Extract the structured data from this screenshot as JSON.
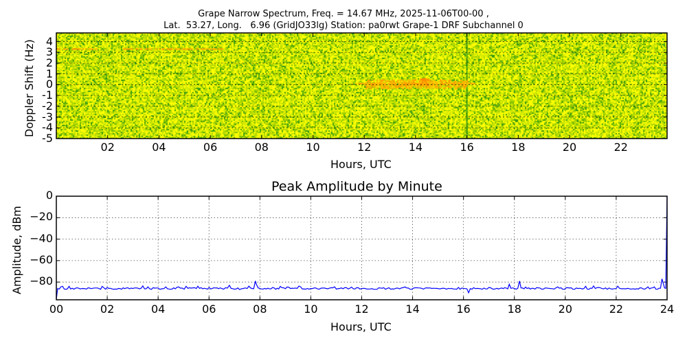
{
  "figure": {
    "title_line1": "Grape Narrow Spectrum, Freq. = 14.67 MHz, 2025-11-06T00-00 ,",
    "title_line2": "Lat.  53.27, Long.   6.96 (GridJO33lg) Station: pa0rwt Grape-1 DRF Subchannel 0"
  },
  "spectrogram": {
    "ylabel": "Doppler Shift (Hz)",
    "xlabel": "Hours, UTC",
    "yticks": [
      "4",
      "3",
      "2",
      "1",
      "0",
      "-1",
      "-2",
      "-3",
      "-4",
      "-5"
    ],
    "xticks": [
      "02",
      "04",
      "06",
      "08",
      "10",
      "12",
      "14",
      "16",
      "18",
      "20",
      "22"
    ]
  },
  "amplitude": {
    "title": "Peak Amplitude by Minute",
    "ylabel": "Amplitude, dBm",
    "xlabel": "Hours, UTC",
    "yticks": [
      "0",
      "−20",
      "−40",
      "−60",
      "−80"
    ],
    "xticks": [
      "00",
      "02",
      "04",
      "06",
      "08",
      "10",
      "12",
      "14",
      "16",
      "18",
      "20",
      "22",
      "24"
    ]
  },
  "colors": {
    "line": "#0000ff",
    "spectro_base": "#c8e000",
    "spectro_yellow": "#ffff00",
    "spectro_green": "#2a9a10",
    "spectro_orange": "#ff8c00"
  },
  "chart_data": [
    {
      "type": "heatmap",
      "title": "Grape Narrow Spectrum, Freq. = 14.67 MHz, 2025-11-06T00-00 , Lat.  53.27, Long.   6.96 (GridJO33lg) Station: pa0rwt Grape-1 DRF Subchannel 0",
      "xlabel": "Hours, UTC",
      "ylabel": "Doppler Shift (Hz)",
      "xlim": [
        0,
        23.8
      ],
      "ylim": [
        -5,
        4.8
      ],
      "x_ticks": [
        "02",
        "04",
        "06",
        "08",
        "10",
        "12",
        "14",
        "16",
        "18",
        "20",
        "22"
      ],
      "y_ticks": [
        4,
        3,
        2,
        1,
        0,
        -1,
        -2,
        -3,
        -4,
        -5
      ],
      "grid": true,
      "colormap": "yellow-green noise with orange features",
      "features": [
        {
          "description": "faint orange line near +3.3 Hz",
          "x_range": [
            0,
            1.6
          ],
          "doppler": 3.3
        },
        {
          "description": "faint orange line near +3.3 Hz",
          "x_range": [
            2.5,
            6.5
          ],
          "doppler": 3.3
        },
        {
          "description": "orange carrier near 0 Hz",
          "x_range": [
            11.5,
            16.3
          ],
          "doppler": 0.1
        },
        {
          "description": "orange hotspot",
          "x": 14.3,
          "doppler": 0.3
        },
        {
          "description": "dark green vertical stripe",
          "x": 16.0
        }
      ]
    },
    {
      "type": "line",
      "title": "Peak Amplitude by Minute",
      "xlabel": "Hours, UTC",
      "ylabel": "Amplitude, dBm",
      "xlim": [
        0,
        24
      ],
      "ylim": [
        -96.5,
        0
      ],
      "x_ticks": [
        "00",
        "02",
        "04",
        "06",
        "08",
        "10",
        "12",
        "14",
        "16",
        "18",
        "20",
        "22",
        "24"
      ],
      "y_ticks": [
        0,
        -20,
        -40,
        -60,
        -80
      ],
      "grid": true,
      "series": [
        {
          "name": "Peak Amplitude",
          "color": "#0000ff",
          "x": [
            0.0,
            0.05,
            0.5,
            1.0,
            1.5,
            1.8,
            2.0,
            2.5,
            3.0,
            3.6,
            4.0,
            4.3,
            4.8,
            5.1,
            5.5,
            6.0,
            6.5,
            6.8,
            7.2,
            7.5,
            7.82,
            7.86,
            8.0,
            8.5,
            8.8,
            9.2,
            9.6,
            10.0,
            11.0,
            12.0,
            13.0,
            13.7,
            14.5,
            15.0,
            15.8,
            16.2,
            16.6,
            17.0,
            17.5,
            17.8,
            18.0,
            18.2,
            18.5,
            19.0,
            19.7,
            20.5,
            20.8,
            21.3,
            22.0,
            22.5,
            23.0,
            23.5,
            23.8,
            23.9,
            24.0
          ],
          "values": [
            -96,
            -86,
            -84,
            -86,
            -85.5,
            -84,
            -85,
            -86,
            -86,
            -84.5,
            -85.5,
            -84.5,
            -84.5,
            -84,
            -86,
            -85,
            -86,
            -83,
            -87,
            -86,
            -79,
            -82,
            -86,
            -85,
            -84,
            -86,
            -84.5,
            -86,
            -86.5,
            -86,
            -86,
            -84.5,
            -85.5,
            -86,
            -85,
            -90,
            -86,
            -85,
            -85.5,
            -82,
            -86,
            -79,
            -86,
            -85.5,
            -84.5,
            -86,
            -84,
            -85,
            -86,
            -86,
            -85.5,
            -84.5,
            -77,
            -85.5,
            0
          ]
        }
      ]
    }
  ]
}
